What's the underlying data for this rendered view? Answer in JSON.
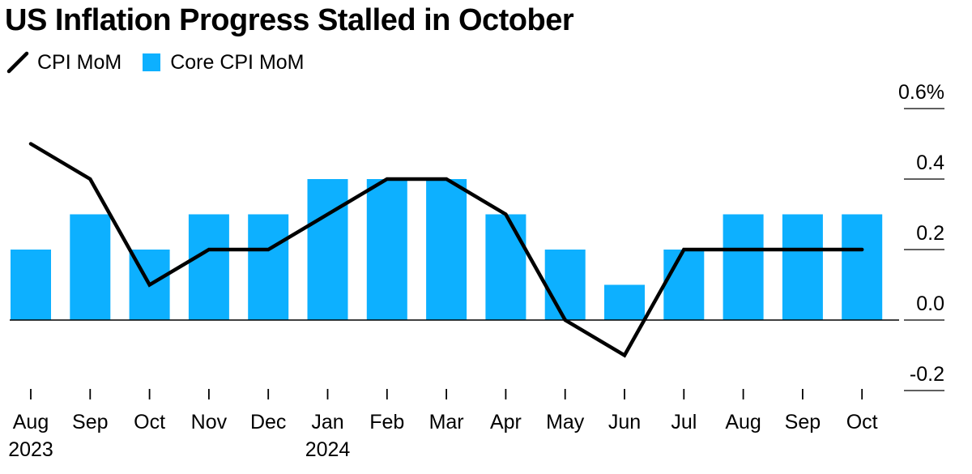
{
  "header": {
    "title": "US Inflation Progress Stalled in October"
  },
  "legend": {
    "items": [
      {
        "label": "CPI MoM",
        "kind": "line",
        "color": "#000000"
      },
      {
        "label": "Core CPI MoM",
        "kind": "bar",
        "color": "#0DB0FF"
      }
    ]
  },
  "chart_data": {
    "type": "bar",
    "title": "US Inflation Progress Stalled in October",
    "categories": [
      "Aug",
      "Sep",
      "Oct",
      "Nov",
      "Dec",
      "Jan",
      "Feb",
      "Mar",
      "Apr",
      "May",
      "Jun",
      "Jul",
      "Aug",
      "Sep",
      "Oct"
    ],
    "year_labels": [
      "2023",
      "",
      "",
      "",
      "",
      "2024",
      "",
      "",
      "",
      "",
      "",
      "",
      "",
      "",
      ""
    ],
    "series": [
      {
        "name": "Core CPI MoM",
        "type": "bar",
        "color": "#0DB0FF",
        "values": [
          0.2,
          0.3,
          0.2,
          0.3,
          0.3,
          0.4,
          0.4,
          0.4,
          0.3,
          0.2,
          0.1,
          0.2,
          0.3,
          0.3,
          0.3
        ]
      },
      {
        "name": "CPI MoM",
        "type": "line",
        "color": "#000000",
        "values": [
          0.5,
          0.4,
          0.1,
          0.2,
          0.2,
          0.3,
          0.4,
          0.4,
          0.3,
          0.0,
          -0.1,
          0.2,
          0.2,
          0.2,
          0.2
        ]
      }
    ],
    "y_axis": {
      "ticks": [
        0.6,
        0.4,
        0.2,
        0.0,
        -0.2
      ],
      "tick_labels": [
        "0.6%",
        "0.4",
        "0.2",
        "0.0",
        "-0.2"
      ],
      "ylim": [
        -0.2,
        0.6
      ],
      "position": "right"
    },
    "xlabel": "",
    "ylabel": "",
    "legend_position": "top-left"
  }
}
